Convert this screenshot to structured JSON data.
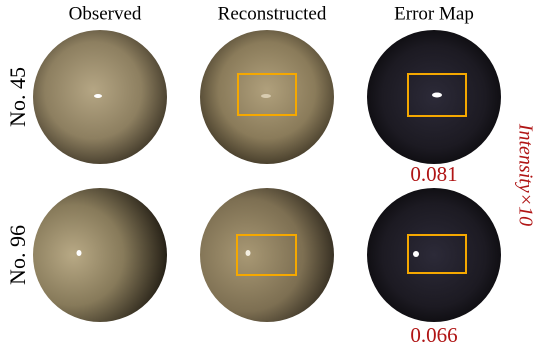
{
  "columns": [
    "Observed",
    "Reconstructed",
    "Error Map"
  ],
  "rows": [
    {
      "label": "No. 45",
      "error": "0.081"
    },
    {
      "label": "No. 96",
      "error": "0.066"
    }
  ],
  "side_label": "Intensity×10"
}
